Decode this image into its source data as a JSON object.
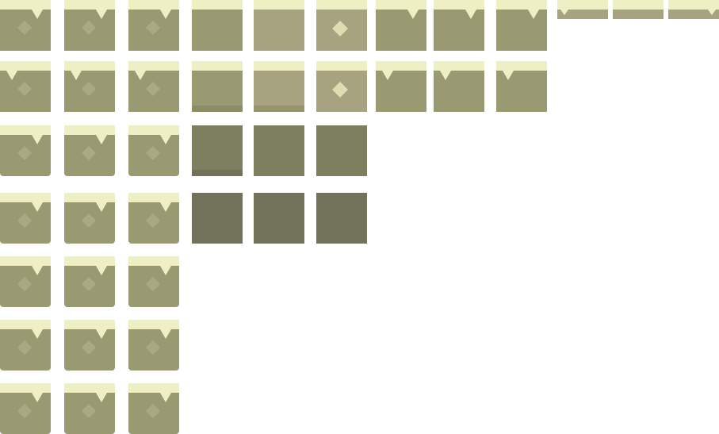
{
  "sheet": {
    "background": "#ffffff",
    "colors": {
      "grass_top": "#eef0c4",
      "dirt": "#9a9a72",
      "dirt_light": "#a7a380",
      "dirt_dark": "#7e7e60",
      "dirt_darker": "#72725a",
      "diamond": "#a9a986",
      "diamond_bright": "#dedcb0"
    },
    "tile_kinds": [
      "grass-top-notch-tile",
      "grass-top-plain-tile",
      "grass-top-sand-tile",
      "grass-top-gem-tile",
      "dirt-dark-tile",
      "dirt-darker-tile",
      "grass-strip-tile"
    ]
  }
}
